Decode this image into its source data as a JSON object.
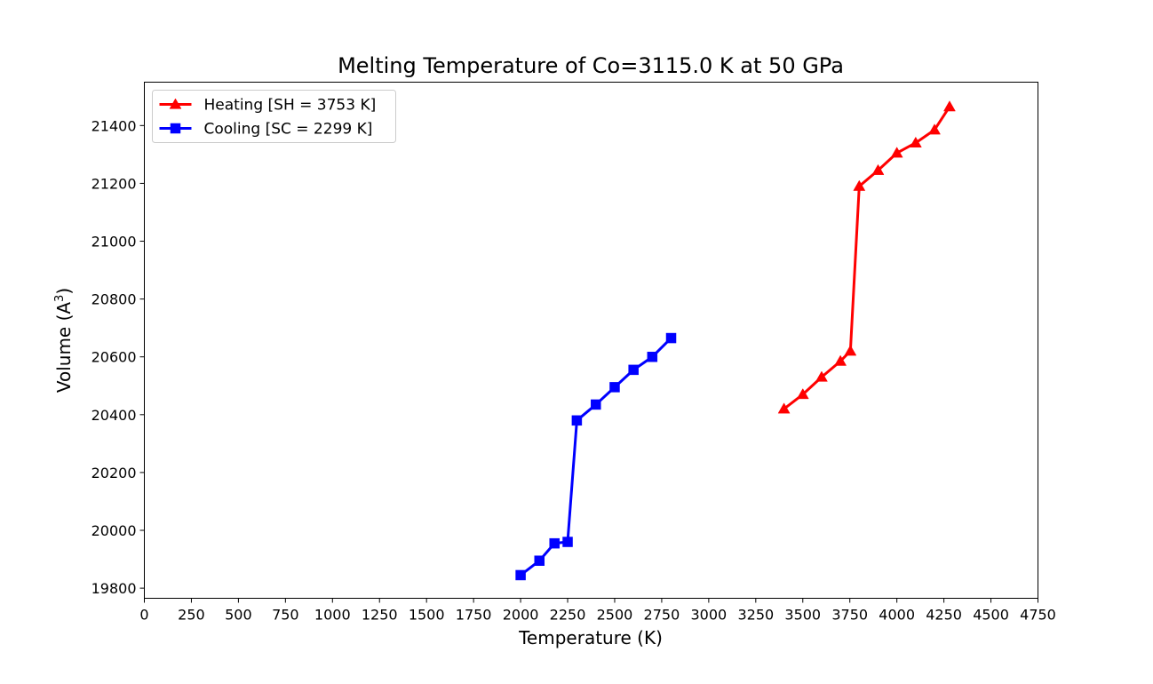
{
  "chart_data": {
    "type": "line",
    "title": "Melting Temperature of Co=3115.0 K at 50 GPa",
    "xlabel": "Temperature (K)",
    "ylabel_text": "Volume (A",
    "ylabel_sup": "3",
    "ylabel_close": ")",
    "xlim": [
      0,
      4750
    ],
    "ylim": [
      19765,
      21550
    ],
    "xticks": [
      0,
      250,
      500,
      750,
      1000,
      1250,
      1500,
      1750,
      2000,
      2250,
      2500,
      2750,
      3000,
      3250,
      3500,
      3750,
      4000,
      4250,
      4500,
      4750
    ],
    "yticks": [
      19800,
      20000,
      20200,
      20400,
      20600,
      20800,
      21000,
      21200,
      21400
    ],
    "legend_position": "upper-left",
    "grid": false,
    "series": [
      {
        "name": "Heating [SH = 3753 K]",
        "color": "#ff0000",
        "marker": "triangle",
        "x": [
          3400,
          3500,
          3600,
          3700,
          3753,
          3800,
          3900,
          4000,
          4100,
          4200,
          4280
        ],
        "y": [
          20420,
          20470,
          20530,
          20585,
          20620,
          21190,
          21245,
          21305,
          21340,
          21385,
          21465
        ]
      },
      {
        "name": "Cooling [SC = 2299 K]",
        "color": "#0000ff",
        "marker": "square",
        "x": [
          2000,
          2100,
          2180,
          2250,
          2299,
          2400,
          2500,
          2600,
          2700,
          2800
        ],
        "y": [
          19845,
          19895,
          19955,
          19960,
          20380,
          20435,
          20495,
          20555,
          20600,
          20665
        ]
      }
    ]
  }
}
